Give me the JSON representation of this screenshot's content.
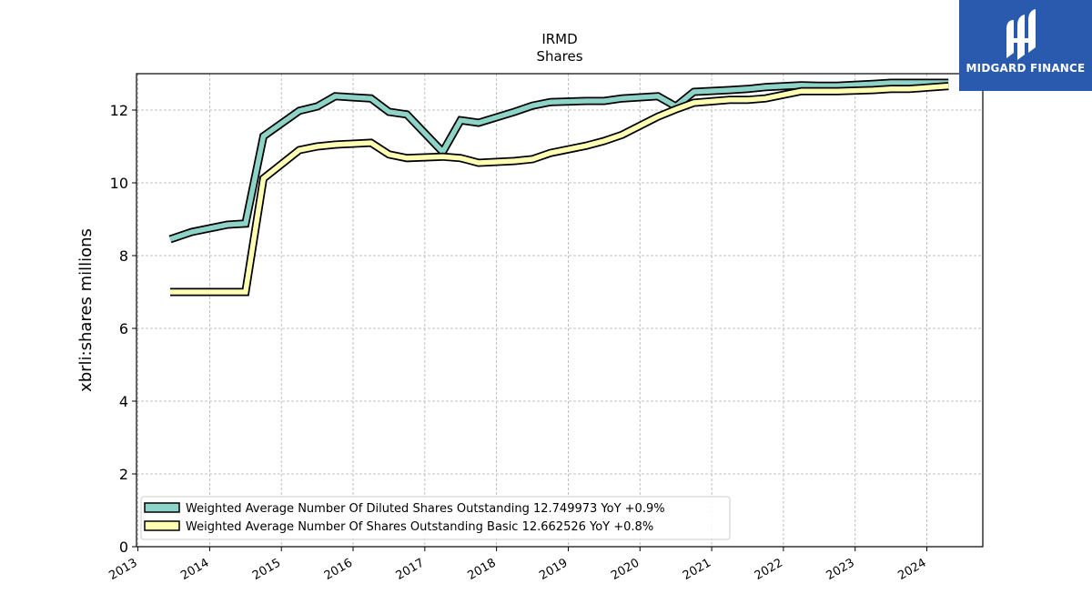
{
  "brand": {
    "name": "MIDGARD FINANCE",
    "color": "#2a5aad"
  },
  "chart_data": {
    "type": "line",
    "title": "IRMD",
    "subtitle": "Shares",
    "xlabel": "",
    "ylabel": "xbrli:shares millions",
    "xlim": [
      2012.98,
      2024.78
    ],
    "ylim": [
      0,
      13.0
    ],
    "yticks": [
      0,
      2,
      4,
      6,
      8,
      10,
      12
    ],
    "xticks": [
      "2013",
      "2014",
      "2015",
      "2016",
      "2017",
      "2018",
      "2019",
      "2020",
      "2021",
      "2022",
      "2023",
      "2024"
    ],
    "grid": true,
    "legend_position": "lower-left",
    "series": [
      {
        "name": "Weighted Average Number Of Diluted Shares Outstanding",
        "legend_label": "Weighted Average Number Of Diluted Shares Outstanding  12.749973 YoY +0.9%",
        "color": "#8dd3c7",
        "x": [
          2013.45,
          2013.75,
          2014.25,
          2014.5,
          2014.75,
          2015.25,
          2015.5,
          2015.75,
          2016.25,
          2016.5,
          2016.75,
          2017.25,
          2017.5,
          2017.75,
          2018.25,
          2018.5,
          2018.75,
          2019.25,
          2019.5,
          2019.75,
          2020.25,
          2020.5,
          2020.75,
          2021.25,
          2021.5,
          2021.75,
          2022.25,
          2022.5,
          2022.75,
          2023.25,
          2023.5,
          2023.75,
          2024.3
        ],
        "y": [
          8.45,
          8.65,
          8.85,
          8.88,
          11.28,
          11.98,
          12.1,
          12.38,
          12.32,
          11.95,
          11.88,
          10.85,
          11.72,
          11.65,
          11.95,
          12.12,
          12.22,
          12.25,
          12.25,
          12.32,
          12.38,
          12.1,
          12.5,
          12.55,
          12.58,
          12.63,
          12.68,
          12.67,
          12.67,
          12.72,
          12.75,
          12.75,
          12.75
        ]
      },
      {
        "name": "Weighted Average Number Of Shares Outstanding Basic",
        "legend_label": "Weighted Average Number Of Shares Outstanding Basic  12.662526 YoY +0.8%",
        "color": "#ffffb3",
        "x": [
          2013.45,
          2013.75,
          2014.25,
          2014.5,
          2014.75,
          2015.25,
          2015.5,
          2015.75,
          2016.25,
          2016.5,
          2016.75,
          2017.25,
          2017.5,
          2017.75,
          2018.25,
          2018.5,
          2018.75,
          2019.25,
          2019.5,
          2019.75,
          2020.25,
          2020.5,
          2020.75,
          2021.25,
          2021.5,
          2021.75,
          2022.25,
          2022.5,
          2022.75,
          2023.25,
          2023.5,
          2023.75,
          2024.3
        ],
        "y": [
          7.0,
          7.0,
          7.0,
          7.0,
          10.12,
          10.9,
          11.0,
          11.05,
          11.1,
          10.78,
          10.68,
          10.72,
          10.68,
          10.55,
          10.6,
          10.65,
          10.82,
          11.02,
          11.15,
          11.32,
          11.82,
          12.02,
          12.2,
          12.28,
          12.28,
          12.32,
          12.52,
          12.52,
          12.52,
          12.55,
          12.58,
          12.58,
          12.66
        ]
      }
    ]
  }
}
